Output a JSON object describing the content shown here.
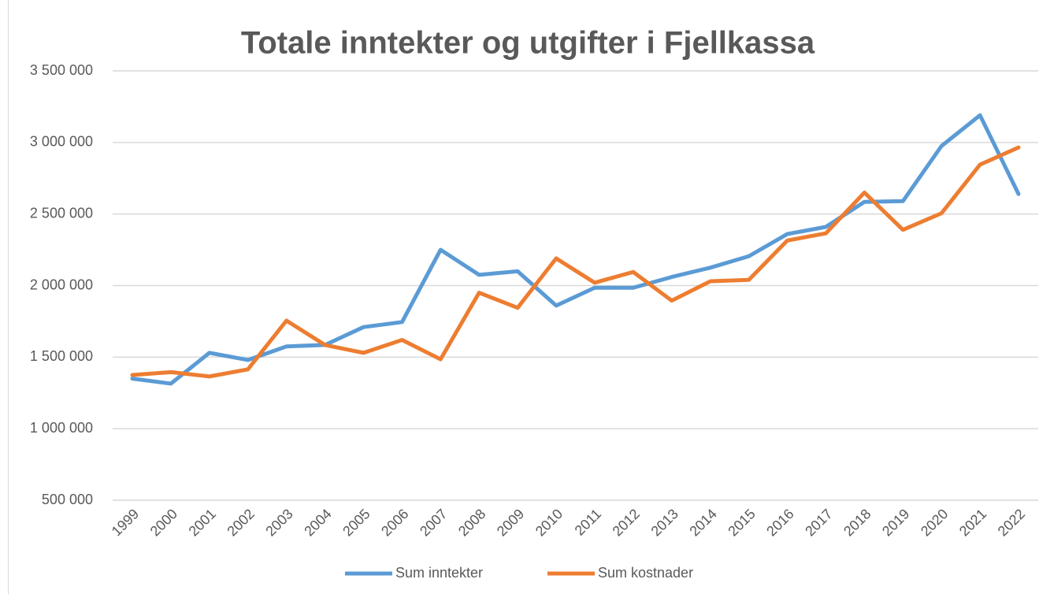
{
  "chart_data": {
    "type": "line",
    "title": "Totale inntekter og utgifter i Fjellkassa",
    "categories": [
      "1999",
      "2000",
      "2001",
      "2002",
      "2003",
      "2004",
      "2005",
      "2006",
      "2007",
      "2008",
      "2009",
      "2010",
      "2011",
      "2012",
      "2013",
      "2014",
      "2015",
      "2016",
      "2017",
      "2018",
      "2019",
      "2020",
      "2021",
      "2022"
    ],
    "series": [
      {
        "name": "Sum inntekter",
        "color": "#5b9bd5",
        "values": [
          1350000,
          1315000,
          1530000,
          1480000,
          1575000,
          1585000,
          1710000,
          1745000,
          2250000,
          2075000,
          2100000,
          1860000,
          1985000,
          1985000,
          2060000,
          2125000,
          2205000,
          2360000,
          2410000,
          2585000,
          2590000,
          2975000,
          3190000,
          2640000
        ]
      },
      {
        "name": "Sum kostnader",
        "color": "#ed7d31",
        "values": [
          1375000,
          1395000,
          1365000,
          1415000,
          1755000,
          1585000,
          1530000,
          1620000,
          1485000,
          1950000,
          1845000,
          2190000,
          2020000,
          2095000,
          1895000,
          2030000,
          2040000,
          2315000,
          2365000,
          2650000,
          2390000,
          2505000,
          2845000,
          2965000
        ]
      }
    ],
    "ylim": [
      500000,
      3500000
    ],
    "yticks": [
      {
        "value": 500000,
        "label": "500 000"
      },
      {
        "value": 1000000,
        "label": "1 000 000"
      },
      {
        "value": 1500000,
        "label": "1 500 000"
      },
      {
        "value": 2000000,
        "label": "2 000 000"
      },
      {
        "value": 2500000,
        "label": "2 500 000"
      },
      {
        "value": 3000000,
        "label": "3 000 000"
      },
      {
        "value": 3500000,
        "label": "3 500 000"
      }
    ],
    "grid": true,
    "legend": "bottom"
  }
}
